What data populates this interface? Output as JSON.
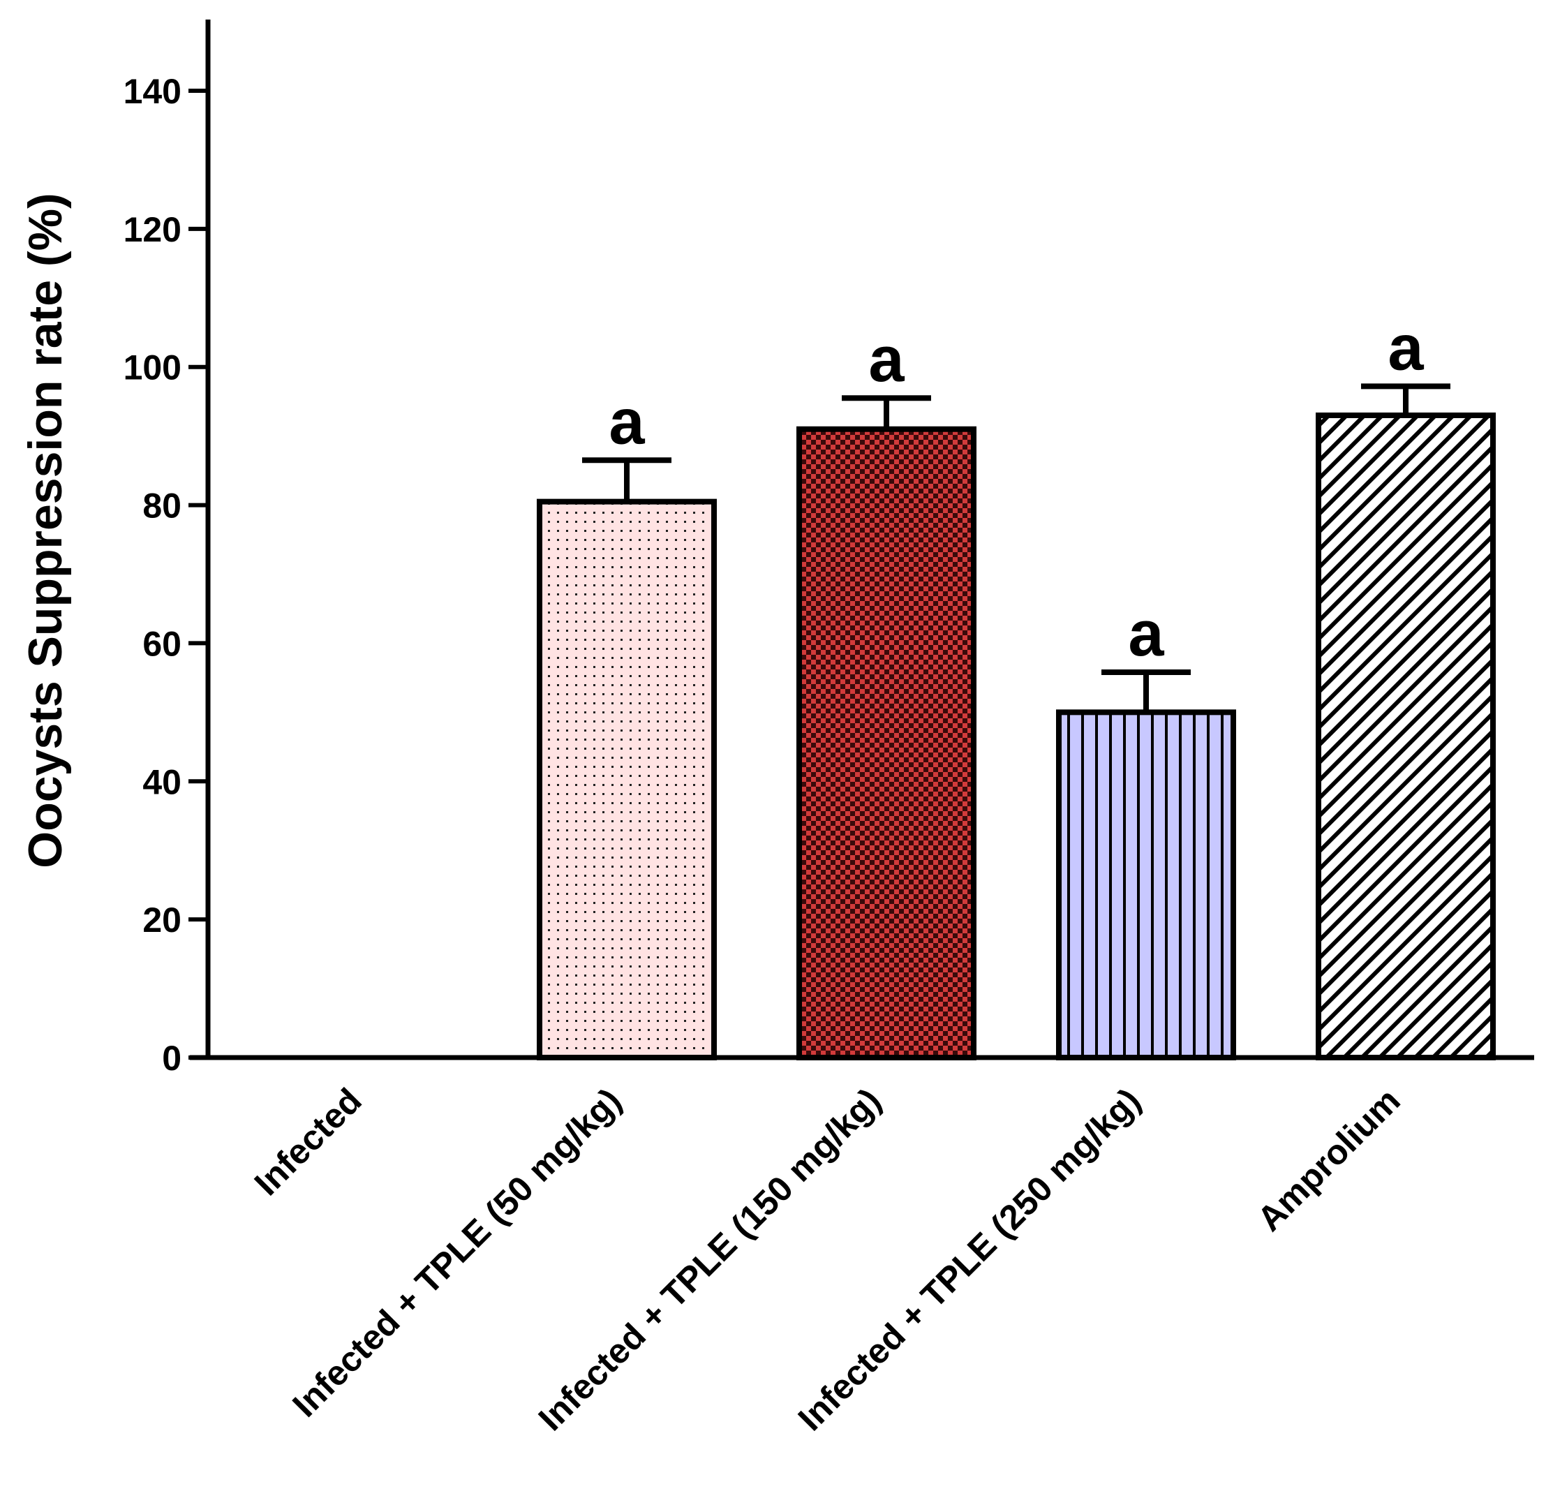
{
  "chart_data": {
    "type": "bar",
    "title": "",
    "xlabel": "",
    "ylabel": "Oocysts Suppression rate (%)",
    "ylim": [
      0,
      150
    ],
    "yticks": [
      0,
      20,
      40,
      60,
      80,
      100,
      120,
      140
    ],
    "ytick_labels": [
      "0",
      "20",
      "40",
      "60",
      "80",
      "100",
      "120",
      "140"
    ],
    "grid": false,
    "legend": "none",
    "categories": [
      "Infected",
      "Infected + TPLE (50 mg/kg)",
      "Infected + TPLE (150 mg/kg)",
      "Infected + TPLE (250 mg/kg)",
      "Amprolium"
    ],
    "values": [
      0,
      80.5,
      91,
      50,
      93
    ],
    "errors": [
      0,
      6,
      4.5,
      5.8,
      4.2
    ],
    "annotations": [
      "",
      "a",
      "a",
      "a",
      "a"
    ],
    "bar_colors": [
      "#ffffff",
      "#ffe3e3",
      "#c83232",
      "#c8c8ff",
      "#ffffff"
    ],
    "bar_patterns": [
      "none",
      "dots",
      "checker",
      "vertical-lines",
      "diagonal-hatch"
    ]
  }
}
